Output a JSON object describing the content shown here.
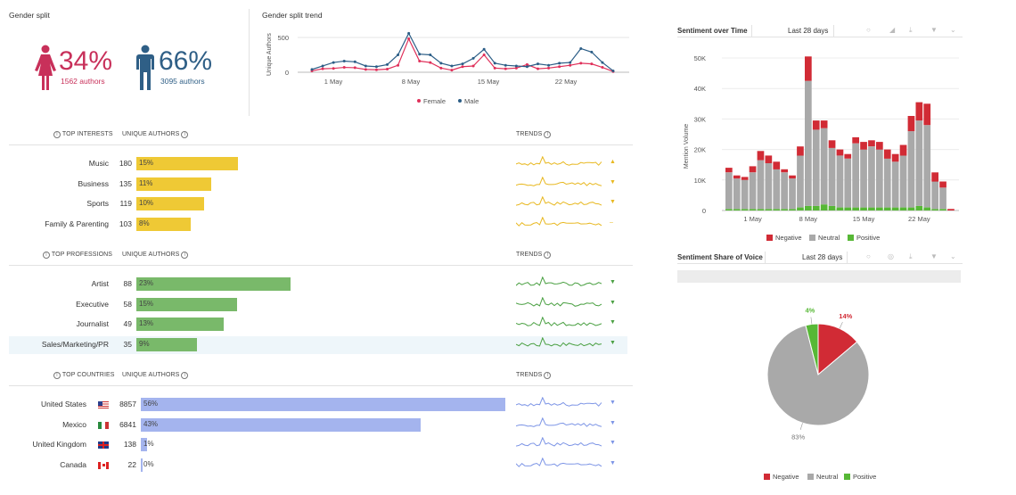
{
  "gender_split": {
    "title": "Gender split",
    "female": {
      "pct": "34%",
      "authors": "1562 authors",
      "color": "#c8305a"
    },
    "male": {
      "pct": "66%",
      "authors": "3095 authors",
      "color": "#2f5f86"
    }
  },
  "gender_trend": {
    "title": "Gender split trend",
    "ylabel": "Unique Authors",
    "yticks": [
      "500",
      "0"
    ],
    "xticks": [
      "1 May",
      "8 May",
      "15 May",
      "22 May"
    ],
    "legend": [
      {
        "name": "Female",
        "color": "#e0305a"
      },
      {
        "name": "Male",
        "color": "#2b5d86"
      }
    ]
  },
  "chart_data": [
    {
      "type": "line",
      "ylabel": "Unique Authors",
      "ylim": [
        0,
        600
      ],
      "x_tick_labels": [
        "1 May",
        "8 May",
        "15 May",
        "22 May"
      ],
      "series": [
        {
          "name": "Female",
          "values": [
            20,
            50,
            55,
            70,
            65,
            40,
            35,
            45,
            100,
            480,
            160,
            140,
            60,
            30,
            80,
            90,
            250,
            60,
            50,
            60,
            110,
            50,
            60,
            80,
            100,
            130,
            120,
            70,
            10
          ]
        },
        {
          "name": "Male",
          "values": [
            40,
            90,
            140,
            160,
            150,
            90,
            80,
            110,
            250,
            560,
            260,
            250,
            130,
            90,
            120,
            200,
            330,
            130,
            100,
            90,
            80,
            120,
            100,
            130,
            140,
            340,
            290,
            140,
            20
          ]
        }
      ]
    },
    {
      "type": "bar",
      "title": "Sentiment over Time",
      "ylabel": "Mention Volume",
      "ylim": [
        0,
        50000
      ],
      "y_ticks": [
        "50K",
        "40K",
        "30K",
        "20K",
        "10K",
        "0"
      ],
      "x_tick_labels": [
        "1 May",
        "8 May",
        "15 May",
        "22 May"
      ],
      "series": [
        {
          "name": "Negative",
          "values": [
            1500,
            1000,
            1000,
            2000,
            3000,
            2500,
            2500,
            1000,
            1000,
            3000,
            8000,
            3000,
            2500,
            2500,
            2000,
            1500,
            2000,
            2500,
            2000,
            2500,
            3000,
            2500,
            3500,
            5000,
            6000,
            7000,
            3000,
            2000,
            500
          ]
        },
        {
          "name": "Neutral",
          "values": [
            12000,
            10000,
            9500,
            12000,
            16000,
            15000,
            13000,
            12000,
            10000,
            17000,
            41000,
            25000,
            25000,
            19000,
            17000,
            16000,
            21000,
            19000,
            20000,
            19000,
            16000,
            15000,
            17000,
            25000,
            28000,
            27000,
            9000,
            7000,
            0
          ]
        },
        {
          "name": "Positive",
          "values": [
            500,
            500,
            500,
            500,
            500,
            500,
            500,
            500,
            500,
            1000,
            1500,
            1500,
            2000,
            1500,
            1000,
            1000,
            1000,
            1000,
            1000,
            1000,
            1000,
            1000,
            1000,
            1000,
            1500,
            1000,
            500,
            500,
            0
          ]
        }
      ]
    },
    {
      "type": "pie",
      "title": "Sentiment Share of Voice",
      "slices": [
        {
          "name": "Negative",
          "value": 14,
          "label": "14%"
        },
        {
          "name": "Neutral",
          "value": 83,
          "label": "83%"
        },
        {
          "name": "Positive",
          "value": 4,
          "label": "4%"
        }
      ]
    }
  ],
  "interests": {
    "header": "TOP INTERESTS",
    "authors_header": "UNIQUE AUTHORS",
    "trends_header": "TRENDS",
    "color": "#efc935",
    "trend_color": "#e8b820",
    "rows": [
      {
        "label": "Music",
        "count": "180",
        "pct": "15%",
        "frac": 0.15,
        "arrow": "▲"
      },
      {
        "label": "Business",
        "count": "135",
        "pct": "11%",
        "frac": 0.11,
        "arrow": "▼"
      },
      {
        "label": "Sports",
        "count": "119",
        "pct": "10%",
        "frac": 0.1,
        "arrow": "▼"
      },
      {
        "label": "Family & Parenting",
        "count": "103",
        "pct": "8%",
        "frac": 0.08,
        "arrow": "–"
      }
    ]
  },
  "professions": {
    "header": "TOP PROFESSIONS",
    "authors_header": "UNIQUE AUTHORS",
    "trends_header": "TRENDS",
    "color": "#79b96a",
    "trend_color": "#4aa042",
    "rows": [
      {
        "label": "Artist",
        "count": "88",
        "pct": "23%",
        "frac": 0.23,
        "arrow": "▼"
      },
      {
        "label": "Executive",
        "count": "58",
        "pct": "15%",
        "frac": 0.15,
        "arrow": "▼"
      },
      {
        "label": "Journalist",
        "count": "49",
        "pct": "13%",
        "frac": 0.13,
        "arrow": "▼"
      },
      {
        "label": "Sales/Marketing/PR",
        "count": "35",
        "pct": "9%",
        "frac": 0.09,
        "arrow": "▼"
      }
    ]
  },
  "countries": {
    "header": "TOP COUNTRIES",
    "authors_header": "UNIQUE AUTHORS",
    "trends_header": "TRENDS",
    "color": "#a4b4ee",
    "trend_color": "#7d95e6",
    "rows": [
      {
        "label": "United States",
        "flag": "us-flag-icon",
        "count": "8857",
        "pct": "56%",
        "frac": 0.56,
        "arrow": "▼"
      },
      {
        "label": "Mexico",
        "flag": "mexico-flag-icon",
        "count": "6841",
        "pct": "43%",
        "frac": 0.43,
        "arrow": "▼"
      },
      {
        "label": "United Kingdom",
        "flag": "uk-flag-icon",
        "count": "138",
        "pct": "1%",
        "frac": 0.01,
        "arrow": "▼"
      },
      {
        "label": "Canada",
        "flag": "canada-flag-icon",
        "count": "22",
        "pct": "0%",
        "frac": 0.0,
        "arrow": "▼"
      }
    ]
  },
  "sentiment_time": {
    "title": "Sentiment over Time",
    "range": "Last 28 days",
    "colors": {
      "negative": "#d12b35",
      "neutral": "#a9a9a9",
      "positive": "#57b836"
    },
    "legend": [
      "Negative",
      "Neutral",
      "Positive"
    ]
  },
  "sentiment_sov": {
    "title": "Sentiment Share of Voice",
    "range": "Last 28 days",
    "legend": [
      "Negative",
      "Neutral",
      "Positive"
    ]
  }
}
